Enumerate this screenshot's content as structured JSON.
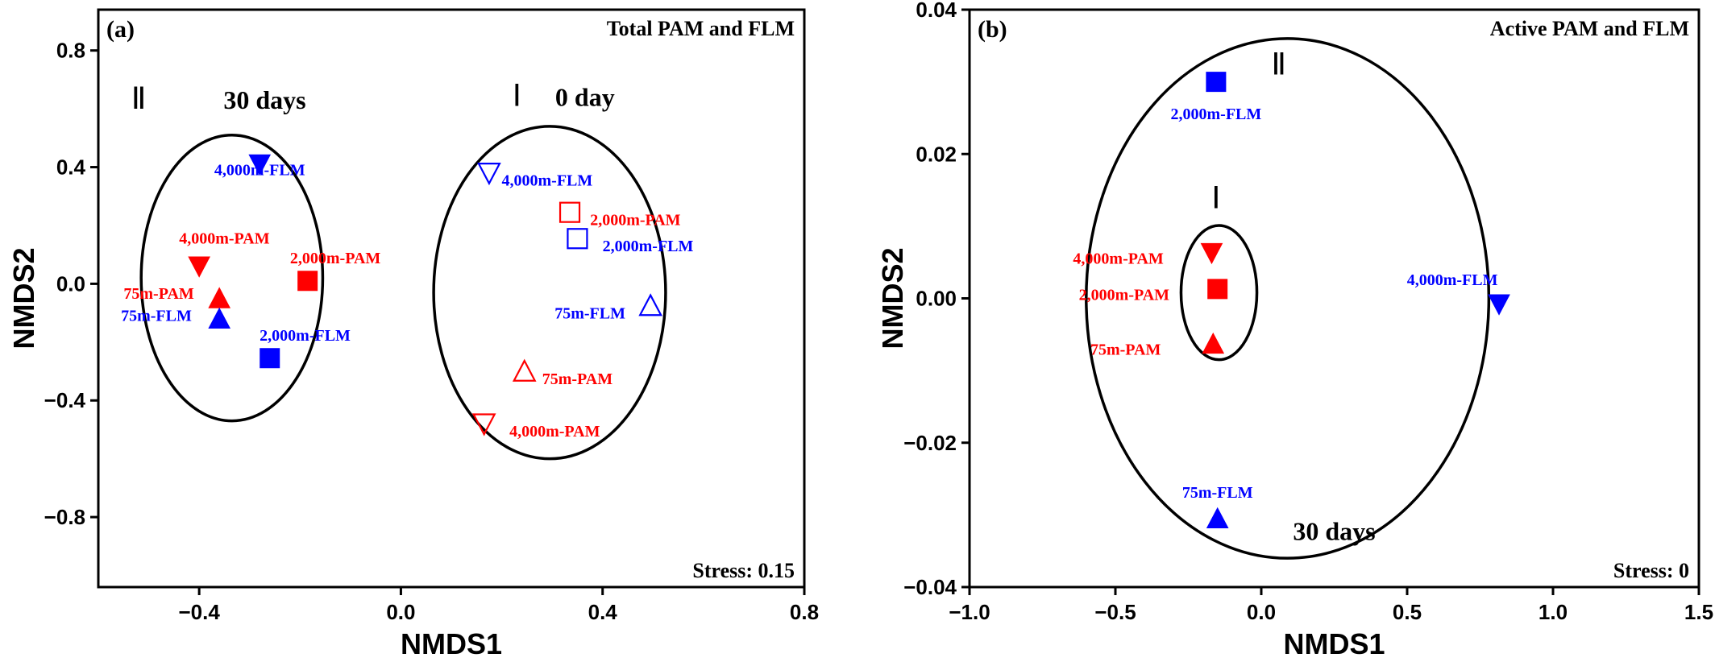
{
  "chart_data": [
    {
      "type": "scatter",
      "panel_label": "(a)",
      "title": "Total PAM and FLM",
      "xlabel": "NMDS1",
      "ylabel": "NMDS2",
      "xlim": [
        -0.6,
        0.8
      ],
      "ylim": [
        -1.04,
        0.94
      ],
      "xticks": [
        -0.4,
        0.0,
        0.4,
        0.8
      ],
      "xtick_labels": [
        "−0.4",
        "0.0",
        "0.4",
        "0.8"
      ],
      "yticks": [
        -0.8,
        -0.4,
        0.0,
        0.4,
        0.8
      ],
      "ytick_labels": [
        "−0.8",
        "−0.4",
        "0.0",
        "0.4",
        "0.8"
      ],
      "stress": "Stress: 0.15",
      "grid": false,
      "colors": {
        "PAM": "#ff0000",
        "FLM": "#0000ff"
      },
      "groups": [
        {
          "roman": "Ⅱ",
          "label": "30 days",
          "cx": -0.335,
          "cy": 0.02,
          "rx": 0.18,
          "ry": 0.49,
          "roman_pos": [
            -0.52,
            0.6
          ],
          "label_pos": [
            -0.27,
            0.6
          ]
        },
        {
          "roman": "Ⅰ",
          "label": "0 day",
          "cx": 0.295,
          "cy": -0.03,
          "rx": 0.23,
          "ry": 0.57,
          "roman_pos": [
            0.23,
            0.61
          ],
          "label_pos": [
            0.365,
            0.61
          ]
        }
      ],
      "points": [
        {
          "label": "4,000m-FLM",
          "x": -0.28,
          "y": 0.41,
          "marker": "triangle-down",
          "filled": true,
          "color": "#0000ff",
          "label_dx": 0,
          "label_dy": 0.3
        },
        {
          "label": "4,000m-PAM",
          "x": -0.4,
          "y": 0.06,
          "marker": "triangle-down",
          "filled": true,
          "color": "#ff0000",
          "label_dx": 0.05,
          "label_dy": -1.6
        },
        {
          "label": "2,000m-PAM",
          "x": -0.185,
          "y": 0.01,
          "marker": "square",
          "filled": true,
          "color": "#ff0000",
          "label_dx": 0.055,
          "label_dy": -1.3
        },
        {
          "label": "75m-PAM",
          "x": -0.36,
          "y": -0.05,
          "marker": "triangle-up",
          "filled": true,
          "color": "#ff0000",
          "label_dx": -0.12,
          "label_dy": -0.3
        },
        {
          "label": "75m-FLM",
          "x": -0.36,
          "y": -0.12,
          "marker": "triangle-up",
          "filled": true,
          "color": "#0000ff",
          "label_dx": -0.125,
          "label_dy": -0.2
        },
        {
          "label": "2,000m-FLM",
          "x": -0.26,
          "y": -0.255,
          "marker": "square",
          "filled": true,
          "color": "#0000ff",
          "label_dx": 0.07,
          "label_dy": -1.3
        },
        {
          "label": "4,000m-FLM",
          "x": 0.175,
          "y": 0.38,
          "marker": "triangle-down",
          "filled": false,
          "color": "#0000ff",
          "label_dx": 0.115,
          "label_dy": 0.4
        },
        {
          "label": "2,000m-PAM",
          "x": 0.335,
          "y": 0.245,
          "marker": "square",
          "filled": false,
          "color": "#ff0000",
          "label_dx": 0.13,
          "label_dy": 0.4
        },
        {
          "label": "2,000m-FLM",
          "x": 0.35,
          "y": 0.155,
          "marker": "square",
          "filled": false,
          "color": "#0000ff",
          "label_dx": 0.14,
          "label_dy": 0.4
        },
        {
          "label": "75m-FLM",
          "x": 0.495,
          "y": -0.075,
          "marker": "triangle-up",
          "filled": false,
          "color": "#0000ff",
          "label_dx": -0.12,
          "label_dy": 0.4
        },
        {
          "label": "75m-PAM",
          "x": 0.245,
          "y": -0.3,
          "marker": "triangle-up",
          "filled": false,
          "color": "#ff0000",
          "label_dx": 0.105,
          "label_dy": 0.4
        },
        {
          "label": "4,000m-PAM",
          "x": 0.165,
          "y": -0.48,
          "marker": "triangle-down",
          "filled": false,
          "color": "#ff0000",
          "label_dx": 0.14,
          "label_dy": 0.4
        }
      ]
    },
    {
      "type": "scatter",
      "panel_label": "(b)",
      "title": "Active PAM and FLM",
      "xlabel": "NMDS1",
      "ylabel": "NMDS2",
      "xlim": [
        -1.0,
        1.5
      ],
      "ylim": [
        -0.04,
        0.04
      ],
      "xticks": [
        -1.0,
        -0.5,
        0.0,
        0.5,
        1.0,
        1.5
      ],
      "xtick_labels": [
        "−1.0",
        "−0.5",
        "0.0",
        "0.5",
        "1.0",
        "1.5"
      ],
      "yticks": [
        -0.04,
        -0.02,
        0.0,
        0.02,
        0.04
      ],
      "ytick_labels": [
        "−0.04",
        "−0.02",
        "0.00",
        "0.02",
        "0.04"
      ],
      "stress": "Stress: 0",
      "grid": false,
      "colors": {
        "PAM": "#ff0000",
        "FLM": "#0000ff"
      },
      "groups": [
        {
          "roman": "Ⅱ",
          "label": "30 days",
          "cx": 0.09,
          "cy": 0.0,
          "rx": 0.69,
          "ry": 0.036,
          "roman_pos": [
            0.06,
            0.031
          ],
          "label_pos": [
            0.25,
            -0.0335
          ]
        },
        {
          "roman": "Ⅰ",
          "label": "",
          "cx": -0.145,
          "cy": 0.0008,
          "rx": 0.13,
          "ry": 0.0093,
          "roman_pos": [
            -0.155,
            0.0125
          ],
          "label_pos": [
            0,
            0
          ]
        }
      ],
      "points": [
        {
          "label": "2,000m-FLM",
          "x": -0.155,
          "y": 0.03,
          "marker": "square",
          "filled": true,
          "color": "#0000ff",
          "label_dx": 0.0,
          "label_dy": 1.8
        },
        {
          "label": "4,000m-PAM",
          "x": -0.17,
          "y": 0.0063,
          "marker": "triangle-down",
          "filled": true,
          "color": "#ff0000",
          "label_dx": -0.32,
          "label_dy": 0.3
        },
        {
          "label": "2,000m-PAM",
          "x": -0.15,
          "y": 0.0013,
          "marker": "square",
          "filled": true,
          "color": "#ff0000",
          "label_dx": -0.32,
          "label_dy": 0.3
        },
        {
          "label": "75m-PAM",
          "x": -0.165,
          "y": -0.0063,
          "marker": "triangle-up",
          "filled": true,
          "color": "#ff0000",
          "label_dx": -0.3,
          "label_dy": 0.3
        },
        {
          "label": "4,000m-FLM",
          "x": 0.815,
          "y": -0.0008,
          "marker": "triangle-down",
          "filled": true,
          "color": "#0000ff",
          "label_dx": -0.16,
          "label_dy": -1.4
        },
        {
          "label": "75m-FLM",
          "x": -0.15,
          "y": -0.0305,
          "marker": "triangle-up",
          "filled": true,
          "color": "#0000ff",
          "label_dx": 0.0,
          "label_dy": -1.5
        }
      ]
    }
  ]
}
